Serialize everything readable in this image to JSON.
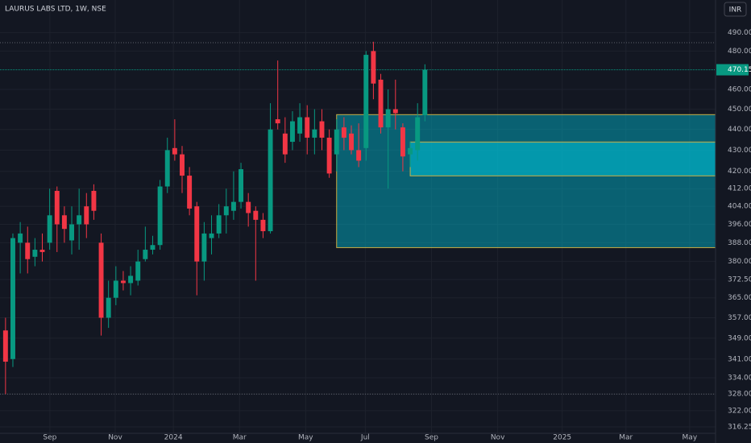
{
  "chart_data": {
    "type": "candlestick",
    "title": "LAURUS LABS LTD, 1W, NSE",
    "currency": "INR",
    "log_scale": true,
    "grid": true,
    "up_color": "#089981",
    "down_color": "#f23645",
    "x": [
      0,
      1,
      2,
      3,
      4,
      5,
      6,
      7,
      8,
      9,
      10,
      11,
      12,
      13,
      14,
      15,
      16,
      17,
      18,
      19,
      20,
      21,
      22,
      23,
      24,
      25,
      26,
      27,
      28,
      29,
      30,
      31,
      32,
      33,
      34,
      35,
      36,
      37,
      38,
      39,
      40,
      41,
      42,
      43,
      44,
      45,
      46,
      47,
      48,
      49,
      50,
      51,
      52,
      53,
      54,
      55,
      56,
      57
    ],
    "open": [
      352,
      341,
      388,
      388,
      382,
      385,
      388,
      411,
      400,
      389,
      396,
      404,
      411,
      388,
      357,
      365,
      372,
      371,
      372,
      381,
      385,
      387,
      413,
      431,
      428,
      418,
      404,
      380,
      390,
      392,
      400,
      402,
      406,
      406,
      402,
      398,
      393,
      445,
      438,
      434,
      438,
      446,
      436,
      444,
      436,
      428,
      441,
      438,
      430,
      431,
      480,
      465,
      441,
      450,
      441,
      428,
      430,
      447
    ],
    "high": [
      357,
      392,
      397,
      395,
      390,
      392,
      412,
      413,
      404,
      404,
      412,
      410,
      414,
      392,
      372,
      378,
      376,
      378,
      385,
      395,
      391,
      416,
      436,
      445,
      432,
      422,
      406,
      397,
      400,
      405,
      412,
      420,
      424,
      410,
      404,
      401,
      453,
      475,
      446,
      449,
      453,
      452,
      450,
      450,
      440,
      445,
      446,
      442,
      443,
      480,
      485,
      468,
      460,
      465,
      443,
      434,
      453,
      473
    ],
    "low": [
      328,
      338,
      375,
      375,
      378,
      380,
      385,
      384,
      388,
      383,
      385,
      390,
      398,
      350,
      353,
      362,
      368,
      366,
      370,
      380,
      383,
      385,
      410,
      425,
      410,
      400,
      366,
      372,
      383,
      390,
      392,
      398,
      403,
      395,
      372,
      390,
      392,
      440,
      424,
      430,
      434,
      428,
      428,
      430,
      417,
      420,
      430,
      428,
      422,
      425,
      455,
      438,
      412,
      440,
      420,
      422,
      425,
      444
    ],
    "close": [
      340,
      390,
      392,
      381,
      385,
      384,
      400,
      396,
      394,
      396,
      400,
      396,
      402,
      357,
      365,
      372,
      371,
      374,
      380,
      385,
      387,
      413,
      430,
      428,
      418,
      403,
      380,
      392,
      392,
      400,
      404,
      406,
      421,
      401,
      398,
      393,
      440,
      443,
      428,
      444,
      446,
      436,
      440,
      436,
      419,
      440,
      436,
      430,
      425,
      478,
      463,
      441,
      450,
      448,
      427,
      431,
      446,
      470.15
    ],
    "zones": [
      {
        "from_x": 45,
        "low": 385.9,
        "high": 447.3
      },
      {
        "from_x": 55,
        "low": 417.9,
        "high": 433.9
      }
    ],
    "hi_lo_lines": [
      484.5,
      328
    ],
    "xlim": [
      -0.75,
      96.5
    ],
    "xticks": [
      {
        "value": 6.03,
        "label": "Sep"
      },
      {
        "value": 14.91,
        "label": "Nov"
      },
      {
        "value": 22.81,
        "label": "2024"
      },
      {
        "value": 31.8,
        "label": "Mar"
      },
      {
        "value": 40.79,
        "label": "May"
      },
      {
        "value": 48.9,
        "label": "Jul"
      },
      {
        "value": 57.9,
        "label": "Sep"
      },
      {
        "value": 66.89,
        "label": "Nov"
      },
      {
        "value": 75.66,
        "label": "2025"
      },
      {
        "value": 84.32,
        "label": "Mar"
      },
      {
        "value": 92.98,
        "label": "May"
      }
    ],
    "ylim": [
      314,
      508
    ],
    "yticks": [
      {
        "value": 490,
        "label": "490.00"
      },
      {
        "value": 480,
        "label": "480.00"
      },
      {
        "value": 460,
        "label": "460.00"
      },
      {
        "value": 450,
        "label": "450.00"
      },
      {
        "value": 440,
        "label": "440.00"
      },
      {
        "value": 430,
        "label": "430.00"
      },
      {
        "value": 420,
        "label": "420.00"
      },
      {
        "value": 412,
        "label": "412.00"
      },
      {
        "value": 404,
        "label": "404.00"
      },
      {
        "value": 396,
        "label": "396.00"
      },
      {
        "value": 388,
        "label": "388.00"
      },
      {
        "value": 380,
        "label": "380.00"
      },
      {
        "value": 372.5,
        "label": "372.50"
      },
      {
        "value": 365,
        "label": "365.00"
      },
      {
        "value": 357,
        "label": "357.00"
      },
      {
        "value": 349,
        "label": "349.00"
      },
      {
        "value": 341,
        "label": "341.00"
      },
      {
        "value": 334,
        "label": "334.00"
      },
      {
        "value": 328,
        "label": "328.00"
      },
      {
        "value": 322,
        "label": "322.00"
      },
      {
        "value": 316.25,
        "label": "316.25"
      }
    ]
  }
}
